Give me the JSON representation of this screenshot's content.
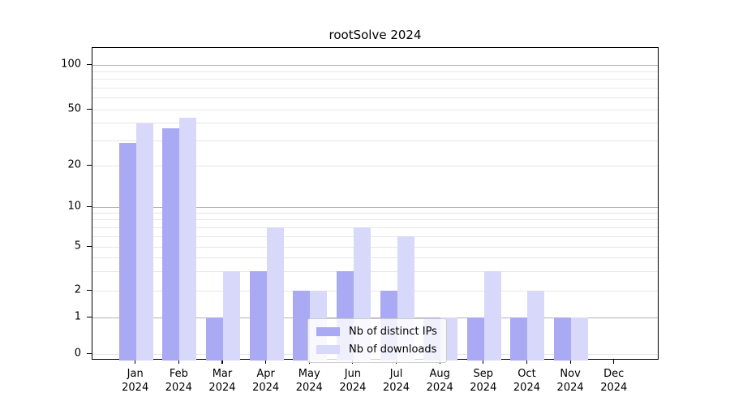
{
  "chart_data": {
    "type": "bar",
    "title": "rootSolve 2024",
    "categories": [
      [
        "Jan",
        "2024"
      ],
      [
        "Feb",
        "2024"
      ],
      [
        "Mar",
        "2024"
      ],
      [
        "Apr",
        "2024"
      ],
      [
        "May",
        "2024"
      ],
      [
        "Jun",
        "2024"
      ],
      [
        "Jul",
        "2024"
      ],
      [
        "Aug",
        "2024"
      ],
      [
        "Sep",
        "2024"
      ],
      [
        "Oct",
        "2024"
      ],
      [
        "Nov",
        "2024"
      ],
      [
        "Dec",
        "2024"
      ]
    ],
    "series": [
      {
        "name": "Nb of distinct IPs",
        "color": "#a9a9f4",
        "values": [
          29,
          37,
          1,
          3,
          2,
          3,
          2,
          1,
          1,
          1,
          1,
          0
        ]
      },
      {
        "name": "Nb of downloads",
        "color": "#d8d8fa",
        "values": [
          40,
          44,
          3,
          7,
          2,
          7,
          6,
          1,
          3,
          2,
          1,
          0
        ]
      }
    ],
    "xlabel": "",
    "ylabel": "",
    "y_axis": {
      "scale": "log",
      "tick_labels": [
        "100",
        "50",
        "20",
        "10",
        "5",
        "2",
        "1",
        "0"
      ],
      "major_gridline_values": [
        1,
        10,
        100
      ],
      "minor_gridline_values": [
        0,
        2,
        3,
        4,
        5,
        6,
        7,
        8,
        9,
        20,
        30,
        40,
        50,
        60,
        70,
        80,
        90
      ]
    },
    "grid": true,
    "legend_position": "lower center",
    "colors": {
      "axis": "#000000",
      "major_grid": "#b3b3b3",
      "minor_grid": "#e7e7e7",
      "legend_border": "#cccccc"
    }
  }
}
